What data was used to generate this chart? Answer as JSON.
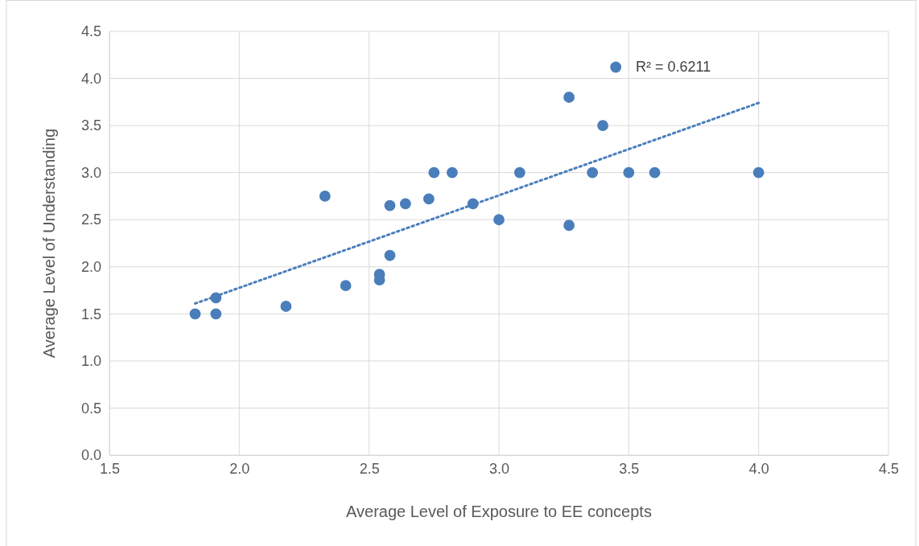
{
  "chart_data": {
    "type": "scatter",
    "xlabel": "Average Level of Exposure to EE concepts",
    "ylabel": "Average Level of Understanding",
    "xlim": [
      1.5,
      4.5
    ],
    "xticks": [
      {
        "value": 1.5,
        "label": "1.5"
      },
      {
        "value": 2,
        "label": "2.0"
      },
      {
        "value": 2.5,
        "label": "2.5"
      },
      {
        "value": 3,
        "label": "3.0"
      },
      {
        "value": 3.5,
        "label": "3.5"
      },
      {
        "value": 4,
        "label": "4.0"
      },
      {
        "value": 4.5,
        "label": "4.5"
      }
    ],
    "ylim": [
      0,
      4.5
    ],
    "yticks": [
      {
        "value": 0,
        "label": "0.0"
      },
      {
        "value": 0.5,
        "label": "0.5"
      },
      {
        "value": 1,
        "label": "1.0"
      },
      {
        "value": 1.5,
        "label": "1.5"
      },
      {
        "value": 2,
        "label": "2.0"
      },
      {
        "value": 2.5,
        "label": "2.5"
      },
      {
        "value": 3,
        "label": "3.0"
      },
      {
        "value": 3.5,
        "label": "3.5"
      },
      {
        "value": 4,
        "label": "4.0"
      },
      {
        "value": 4.5,
        "label": "4.5"
      }
    ],
    "grid": true,
    "marker": "circle",
    "series": [
      {
        "color": "#4a7ebb",
        "x": [
          1.83,
          1.91,
          1.91,
          2.18,
          2.33,
          2.41,
          2.54,
          2.54,
          2.58,
          2.58,
          2.64,
          2.73,
          2.75,
          2.82,
          2.9,
          3.0,
          3.08,
          3.27,
          3.27,
          3.36,
          3.4,
          3.45,
          3.5,
          3.6,
          4.0
        ],
        "values": [
          1.5,
          1.67,
          1.5,
          1.58,
          2.75,
          1.8,
          1.92,
          1.86,
          2.12,
          2.65,
          2.67,
          2.72,
          3.0,
          3.0,
          2.67,
          2.5,
          3.0,
          3.8,
          2.44,
          3.0,
          3.5,
          4.12,
          3.0,
          3.0,
          3.0
        ]
      },
      {
        "type": "line",
        "marker": "none",
        "color": "#4a7ebb",
        "line_style": "dotted",
        "x": [
          1.83,
          4.0
        ],
        "values": [
          1.61,
          3.74
        ]
      }
    ],
    "annotations": [
      "R² = 0.6211"
    ]
  }
}
